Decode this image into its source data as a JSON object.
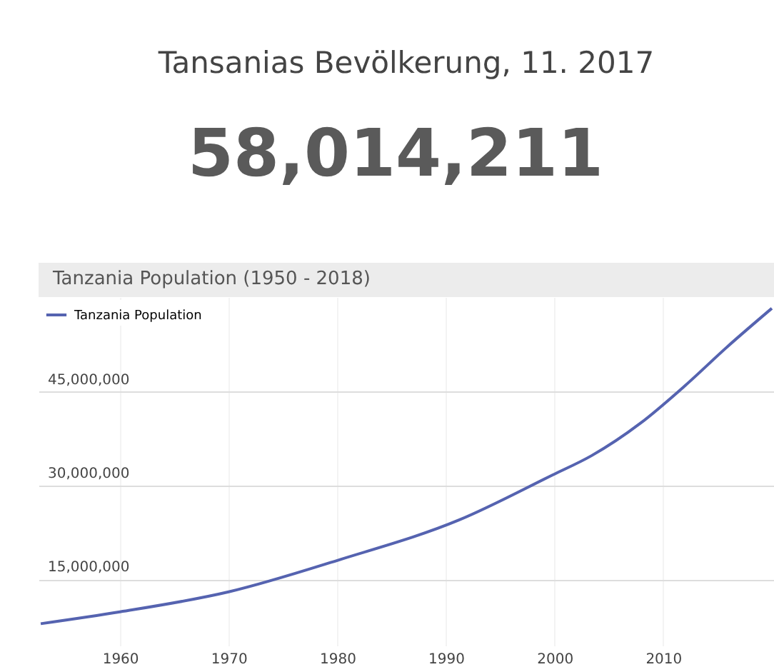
{
  "chart_data": {
    "type": "line",
    "title": "Tansanias Bevölkerung, 11. 2017",
    "subtitle": "58,014,211",
    "annotations": [
      "Tanzania Population (1950 - 2018)"
    ],
    "x": [
      1952.7,
      1960,
      1970,
      1980.3,
      1991.2,
      1999.8,
      2003.4,
      2007.9,
      2012,
      2016,
      2020
    ],
    "series": [
      {
        "name": "Tanzania Population",
        "color": "#5563b0",
        "values": [
          7900000,
          9800000,
          13000000,
          18200000,
          24500000,
          31700000,
          34800000,
          40000000,
          46000000,
          52400000,
          58400000
        ]
      }
    ],
    "xlim": [
      1952.5,
      2020.2
    ],
    "ylim": [
      4400000,
      60200000
    ],
    "xticks": [
      1960,
      1970,
      1980,
      1990,
      2000,
      2010
    ],
    "yticks": [
      {
        "value": 15000000,
        "label": "15,000,000"
      },
      {
        "value": 30000000,
        "label": "30,000,000"
      },
      {
        "value": 45000000,
        "label": "45,000,000"
      }
    ],
    "grid": true,
    "legend": "top left",
    "marker": "none",
    "line_style": "solid"
  }
}
